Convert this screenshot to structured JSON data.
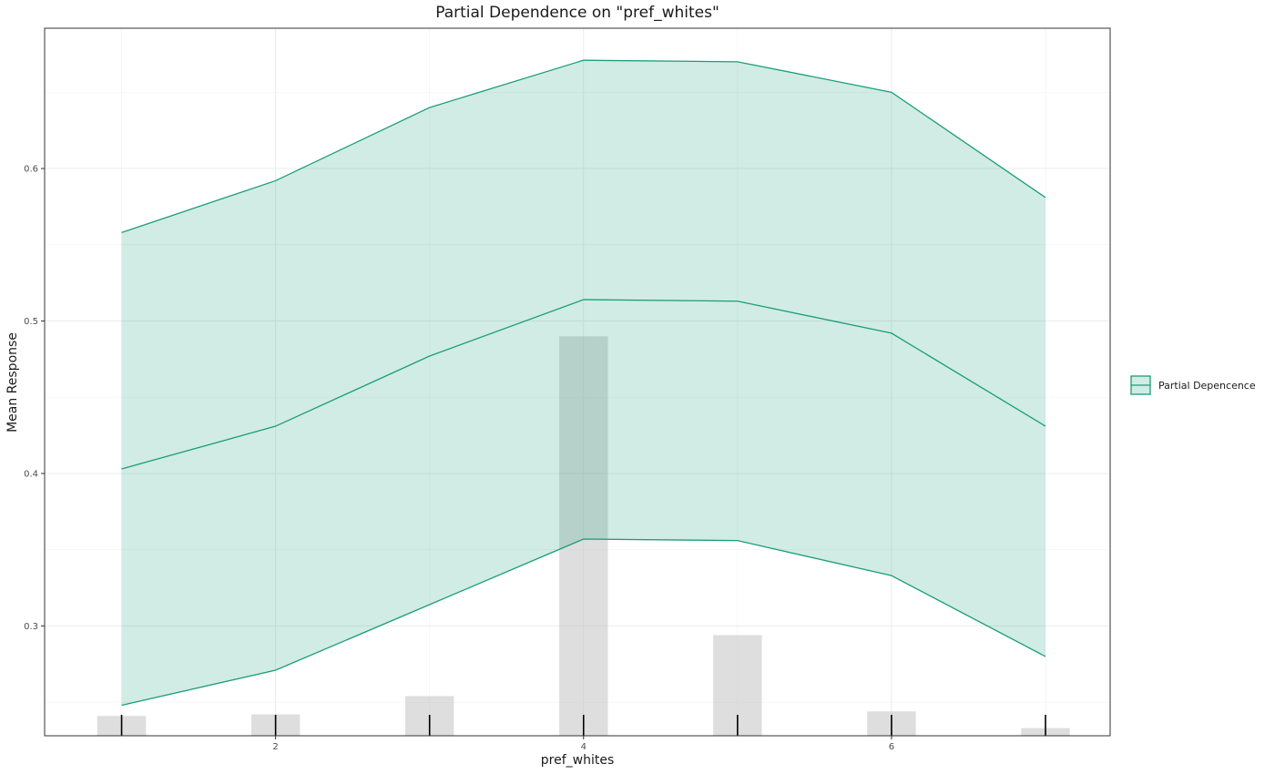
{
  "chart_data": {
    "type": "line",
    "title": "Partial Dependence on \"pref_whites\"",
    "xlabel": "pref_whites",
    "ylabel": "Mean Response",
    "xlim": [
      0.5,
      7.42
    ],
    "ylim": [
      0.228,
      0.692
    ],
    "x_ticks": [
      2,
      4,
      6
    ],
    "y_ticks": [
      0.3,
      0.4,
      0.5,
      0.6
    ],
    "x_tick_labels": [
      "2",
      "4",
      "6"
    ],
    "y_tick_labels": [
      "0.3",
      "0.4",
      "0.5",
      "0.6"
    ],
    "grid": true,
    "legend_position": "right",
    "series": [
      {
        "name": "Partial Depencence",
        "x": [
          1,
          2,
          3,
          4,
          5,
          6,
          7
        ],
        "mean": [
          0.403,
          0.431,
          0.477,
          0.514,
          0.513,
          0.492,
          0.431
        ],
        "upper": [
          0.558,
          0.592,
          0.64,
          0.671,
          0.67,
          0.65,
          0.581
        ],
        "lower": [
          0.248,
          0.271,
          0.314,
          0.357,
          0.356,
          0.333,
          0.28
        ],
        "color": "#1b9e77",
        "fill": "#1b9e77"
      }
    ],
    "histogram": {
      "x": [
        1,
        2,
        3,
        4,
        5,
        6,
        7
      ],
      "top": [
        0.241,
        0.242,
        0.254,
        0.49,
        0.294,
        0.244,
        0.233
      ],
      "color": "#bdbdbd"
    },
    "rug": [
      1,
      2,
      3,
      4,
      5,
      6,
      7
    ]
  }
}
